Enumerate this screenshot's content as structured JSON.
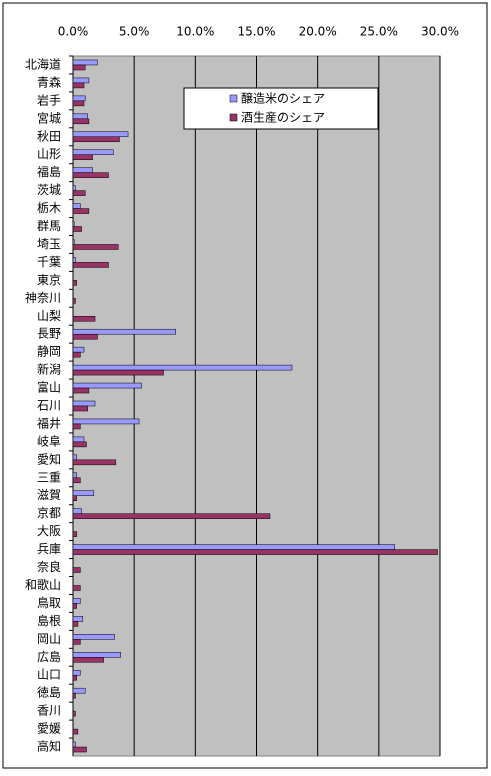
{
  "chart_data": {
    "type": "bar",
    "orientation": "horizontal",
    "categories": [
      "北海道",
      "青森",
      "岩手",
      "宮城",
      "秋田",
      "山形",
      "福島",
      "茨城",
      "栃木",
      "群馬",
      "埼玉",
      "千葉",
      "東京",
      "神奈川",
      "山梨",
      "長野",
      "静岡",
      "新潟",
      "富山",
      "石川",
      "福井",
      "岐阜",
      "愛知",
      "三重",
      "滋賀",
      "京都",
      "大阪",
      "兵庫",
      "奈良",
      "和歌山",
      "鳥取",
      "島根",
      "岡山",
      "広島",
      "山口",
      "徳島",
      "香川",
      "愛媛",
      "高知"
    ],
    "series": [
      {
        "name": "醸造米のシェア",
        "color": "#9999ff",
        "values": [
          2.0,
          1.3,
          1.0,
          1.2,
          4.5,
          3.3,
          1.6,
          0.2,
          0.6,
          0.1,
          0.1,
          0.2,
          0,
          0,
          0,
          8.4,
          0.9,
          17.9,
          5.6,
          1.8,
          5.4,
          0.9,
          0.3,
          0.3,
          1.7,
          0.7,
          0,
          26.3,
          0,
          0,
          0.6,
          0.8,
          3.4,
          3.9,
          0.6,
          1.0,
          0,
          0,
          0.2
        ]
      },
      {
        "name": "酒生産のシェア",
        "color": "#993366",
        "values": [
          1.0,
          0.9,
          0.9,
          1.3,
          3.8,
          1.6,
          2.9,
          1.0,
          1.3,
          0.7,
          3.7,
          2.9,
          0.3,
          0.2,
          1.8,
          2.0,
          0.6,
          7.4,
          1.3,
          1.2,
          0.6,
          1.1,
          3.5,
          0.6,
          0.3,
          16.1,
          0.3,
          29.8,
          0.6,
          0.6,
          0.3,
          0.4,
          0.6,
          2.5,
          0.3,
          0.2,
          0.2,
          0.4,
          1.1
        ]
      }
    ],
    "xlim": [
      0,
      30
    ],
    "xticks": [
      {
        "value": 0,
        "label": "0.0%"
      },
      {
        "value": 5,
        "label": "5.0%"
      },
      {
        "value": 10,
        "label": "10.0%"
      },
      {
        "value": 15,
        "label": "15.0%"
      },
      {
        "value": 20,
        "label": "20.0%"
      },
      {
        "value": 25,
        "label": "25.0%"
      },
      {
        "value": 30,
        "label": "30.0%"
      }
    ],
    "grid": true,
    "legend": "top"
  }
}
